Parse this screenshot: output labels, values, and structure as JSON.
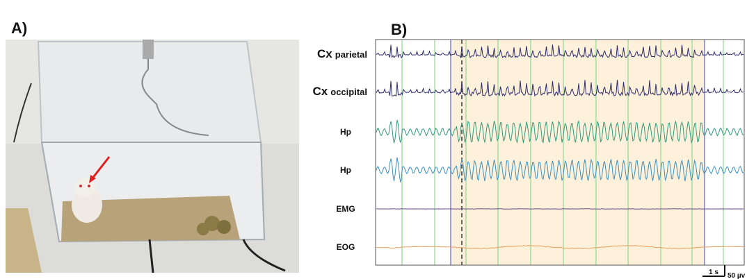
{
  "panel_a": {
    "label": "A)"
  },
  "panel_b": {
    "label": "B)",
    "traces": [
      {
        "main": "Cx",
        "sub": "parietal"
      },
      {
        "main": "Cx",
        "sub": "occipital"
      },
      {
        "main": "Hp"
      },
      {
        "main": "Hp"
      },
      {
        "main": "EMG"
      },
      {
        "main": "EOG"
      }
    ],
    "scale_time": "1 s",
    "scale_amplitude": "50 µv"
  }
}
